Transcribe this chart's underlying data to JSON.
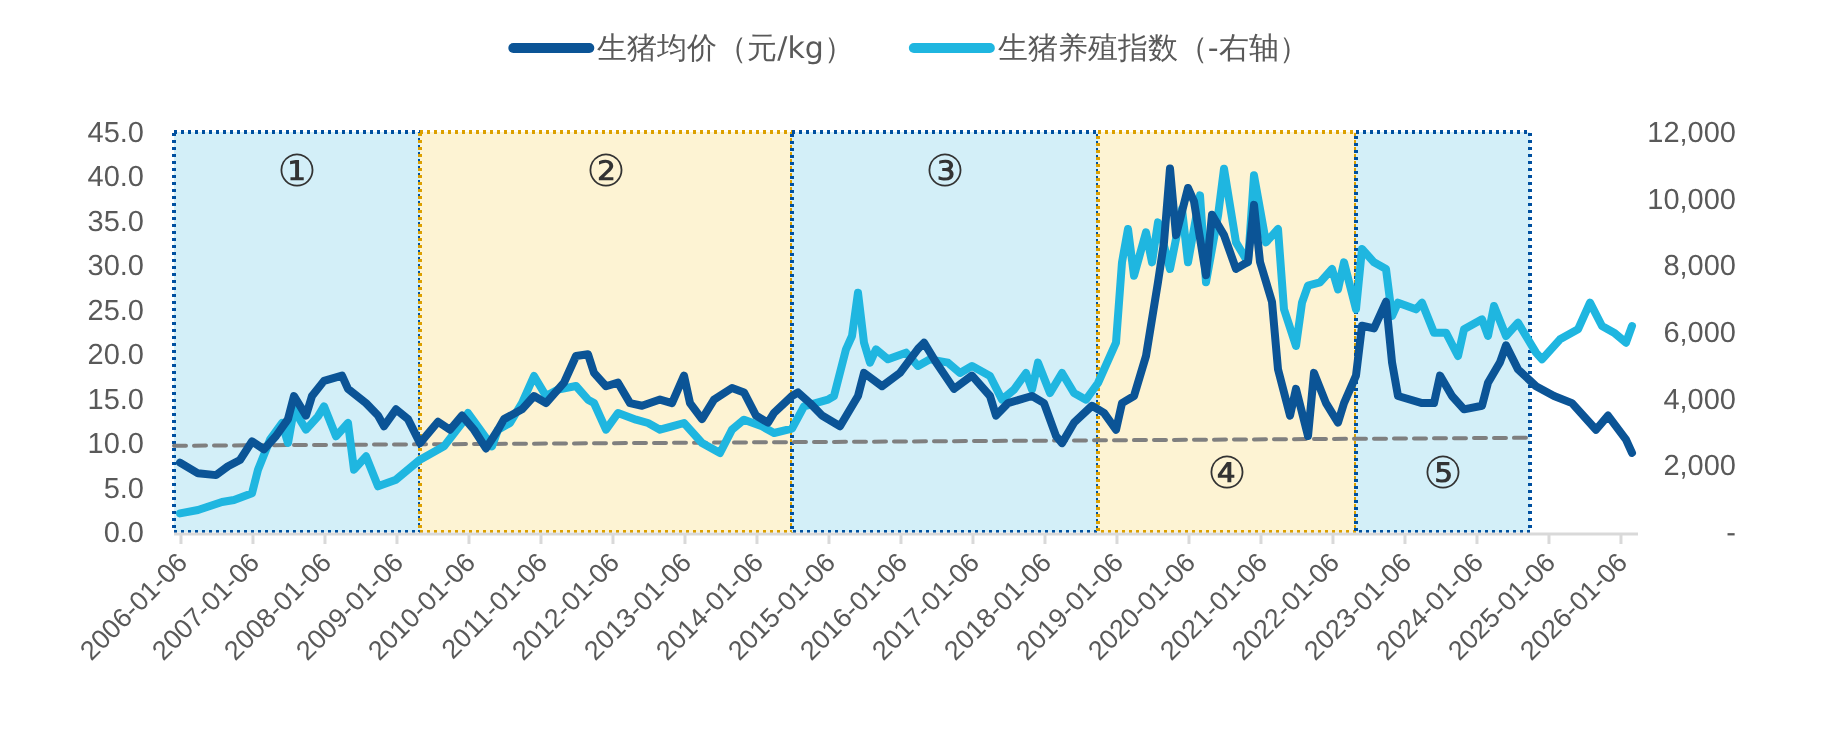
{
  "chart_data": {
    "type": "line",
    "legend": "top",
    "xlim": [
      "2005-12",
      "2026-04"
    ],
    "xticks": [
      "2006-01-06",
      "2007-01-06",
      "2008-01-06",
      "2009-01-06",
      "2010-01-06",
      "2011-01-06",
      "2012-01-06",
      "2013-01-06",
      "2014-01-06",
      "2015-01-06",
      "2016-01-06",
      "2017-01-06",
      "2018-01-06",
      "2019-01-06",
      "2020-01-06",
      "2021-01-06",
      "2022-01-06",
      "2023-01-06",
      "2024-01-06",
      "2025-01-06",
      "2026-01-06"
    ],
    "ylim": [
      0,
      45
    ],
    "yticks": [
      {
        "value": 0,
        "label": "0.0"
      },
      {
        "value": 5,
        "label": "5.0"
      },
      {
        "value": 10,
        "label": "10.0"
      },
      {
        "value": 15,
        "label": "15.0"
      },
      {
        "value": 20,
        "label": "20.0"
      },
      {
        "value": 25,
        "label": "25.0"
      },
      {
        "value": 30,
        "label": "30.0"
      },
      {
        "value": 35,
        "label": "35.0"
      },
      {
        "value": 40,
        "label": "40.0"
      },
      {
        "value": 45,
        "label": "45.0"
      }
    ],
    "y2lim": [
      0,
      12000
    ],
    "y2ticks": [
      {
        "value": 0,
        "label": "-"
      },
      {
        "value": 2000,
        "label": "2,000"
      },
      {
        "value": 4000,
        "label": "4,000"
      },
      {
        "value": 6000,
        "label": "6,000"
      },
      {
        "value": 8000,
        "label": "8,000"
      },
      {
        "value": 10000,
        "label": "10,000"
      },
      {
        "value": 12000,
        "label": "12,000"
      }
    ],
    "bands": [
      {
        "axis": "x",
        "from": "2005-12",
        "to": "2009-05",
        "label": "①",
        "color": "#d3eff8"
      },
      {
        "axis": "x",
        "from": "2009-05",
        "to": "2014-07",
        "label": "②",
        "color": "#fdf3d3"
      },
      {
        "axis": "x",
        "from": "2014-07",
        "to": "2018-10",
        "label": "③",
        "color": "#d3eff8"
      },
      {
        "axis": "x",
        "from": "2018-10",
        "to": "2022-05",
        "label": "④",
        "color": "#fdf3d3"
      },
      {
        "axis": "x",
        "from": "2022-05",
        "to": "2024-10",
        "label": "⑤",
        "color": "#d3eff8"
      }
    ],
    "series": [
      {
        "name": "生猪均价（元/kg）",
        "color": "#0b5496",
        "x": [
          "2006-01",
          "2006-04",
          "2006-07",
          "2006-09",
          "2006-11",
          "2007-01",
          "2007-03",
          "2007-05",
          "2007-07",
          "2007-08",
          "2007-10",
          "2007-11",
          "2008-01",
          "2008-04",
          "2008-05",
          "2008-08",
          "2008-10",
          "2008-11",
          "2009-01",
          "2009-03",
          "2009-05",
          "2009-06",
          "2009-08",
          "2009-10",
          "2009-12",
          "2010-02",
          "2010-04",
          "2010-06",
          "2010-07",
          "2010-10",
          "2010-12",
          "2011-02",
          "2011-05",
          "2011-07",
          "2011-09",
          "2011-10",
          "2011-12",
          "2012-02",
          "2012-04",
          "2012-06",
          "2012-09",
          "2012-11",
          "2013-01",
          "2013-02",
          "2013-04",
          "2013-06",
          "2013-09",
          "2013-11",
          "2014-01",
          "2014-03",
          "2014-04",
          "2014-07",
          "2014-08",
          "2014-10",
          "2014-12",
          "2015-03",
          "2015-06",
          "2015-07",
          "2015-10",
          "2016-01",
          "2016-04",
          "2016-05",
          "2016-07",
          "2016-10",
          "2017-01",
          "2017-04",
          "2017-05",
          "2017-07",
          "2017-11",
          "2018-01",
          "2018-03",
          "2018-04",
          "2018-06",
          "2018-09",
          "2018-11",
          "2019-01",
          "2019-02",
          "2019-04",
          "2019-06",
          "2019-08",
          "2019-09",
          "2019-10",
          "2019-11",
          "2020-01",
          "2020-02",
          "2020-04",
          "2020-05",
          "2020-07",
          "2020-09",
          "2020-11",
          "2020-12",
          "2021-01",
          "2021-03",
          "2021-04",
          "2021-06",
          "2021-07",
          "2021-09",
          "2021-10",
          "2021-12",
          "2022-02",
          "2022-03",
          "2022-05",
          "2022-06",
          "2022-08",
          "2022-10",
          "2022-11",
          "2022-12",
          "2023-04",
          "2023-06",
          "2023-07",
          "2023-09",
          "2023-11",
          "2024-02",
          "2024-03",
          "2024-05",
          "2024-06",
          "2024-08",
          "2024-11",
          "2025-02",
          "2025-05",
          "2025-09",
          "2025-11",
          "2026-02",
          "2026-03"
        ],
        "values": [
          7.8,
          6.6,
          6.4,
          7.4,
          8.1,
          10.2,
          9.3,
          10.8,
          12.7,
          15.3,
          13.1,
          15.3,
          17.0,
          17.6,
          16.1,
          14.5,
          13.1,
          11.9,
          13.8,
          12.7,
          10.0,
          10.8,
          12.4,
          11.5,
          13.1,
          11.5,
          9.4,
          11.5,
          12.7,
          13.8,
          15.3,
          14.5,
          16.8,
          19.8,
          20.0,
          17.9,
          16.4,
          16.8,
          14.5,
          14.2,
          14.9,
          14.5,
          17.6,
          14.5,
          12.7,
          14.9,
          16.2,
          15.7,
          13.1,
          12.3,
          13.4,
          15.3,
          15.7,
          14.5,
          13.1,
          11.9,
          15.3,
          17.9,
          16.4,
          17.9,
          20.6,
          21.3,
          19.1,
          16.1,
          17.6,
          15.3,
          13.1,
          14.5,
          15.3,
          14.5,
          10.8,
          10.0,
          12.3,
          14.2,
          13.4,
          11.5,
          14.5,
          15.3,
          19.8,
          28.1,
          32.6,
          40.9,
          33.4,
          38.7,
          37.2,
          28.9,
          35.7,
          33.4,
          29.6,
          30.4,
          36.8,
          30.4,
          25.9,
          18.3,
          13.1,
          16.1,
          10.8,
          17.9,
          14.5,
          12.3,
          14.5,
          17.6,
          23.2,
          22.9,
          25.9,
          19.1,
          15.3,
          14.5,
          14.5,
          17.6,
          15.3,
          13.8,
          14.2,
          16.8,
          19.1,
          21.0,
          18.3,
          16.4,
          15.3,
          14.5,
          11.5,
          13.1,
          10.4,
          8.9
        ]
      },
      {
        "name": "生猪养殖指数（-右轴）",
        "color": "#1fb6e0",
        "axis": "y2",
        "x": [
          "2006-01",
          "2006-04",
          "2006-08",
          "2006-10",
          "2007-01",
          "2007-02",
          "2007-04",
          "2007-06",
          "2007-07",
          "2007-08",
          "2007-10",
          "2007-12",
          "2008-01",
          "2008-03",
          "2008-05",
          "2008-06",
          "2008-08",
          "2008-10",
          "2009-01",
          "2009-03",
          "2009-05",
          "2009-07",
          "2009-09",
          "2009-12",
          "2010-01",
          "2010-03",
          "2010-05",
          "2010-06",
          "2010-08",
          "2010-10",
          "2010-12",
          "2011-02",
          "2011-04",
          "2011-07",
          "2011-09",
          "2011-10",
          "2011-12",
          "2012-02",
          "2012-05",
          "2012-07",
          "2012-09",
          "2012-11",
          "2013-01",
          "2013-04",
          "2013-07",
          "2013-09",
          "2013-11",
          "2014-02",
          "2014-04",
          "2014-07",
          "2014-09",
          "2015-01",
          "2015-02",
          "2015-04",
          "2015-05",
          "2015-06",
          "2015-07",
          "2015-08",
          "2015-09",
          "2015-11",
          "2016-02",
          "2016-04",
          "2016-06",
          "2016-09",
          "2016-11",
          "2017-01",
          "2017-04",
          "2017-06",
          "2017-08",
          "2017-10",
          "2017-11",
          "2017-12",
          "2018-02",
          "2018-04",
          "2018-06",
          "2018-08",
          "2018-10",
          "2019-01",
          "2019-02",
          "2019-03",
          "2019-04",
          "2019-06",
          "2019-07",
          "2019-08",
          "2019-10",
          "2019-12",
          "2020-01",
          "2020-03",
          "2020-04",
          "2020-06",
          "2020-07",
          "2020-09",
          "2020-11",
          "2020-12",
          "2021-02",
          "2021-04",
          "2021-05",
          "2021-07",
          "2021-08",
          "2021-09",
          "2021-11",
          "2022-01",
          "2022-02",
          "2022-03",
          "2022-05",
          "2022-06",
          "2022-08",
          "2022-10",
          "2022-11",
          "2022-12",
          "2023-03",
          "2023-04",
          "2023-06",
          "2023-08",
          "2023-10",
          "2023-11",
          "2024-02",
          "2024-03",
          "2024-04",
          "2024-06",
          "2024-08",
          "2024-11",
          "2024-12",
          "2025-03",
          "2025-06",
          "2025-08",
          "2025-10",
          "2025-12",
          "2026-02",
          "2026-03"
        ],
        "values": [
          560,
          660,
          900,
          960,
          1160,
          1870,
          2770,
          3270,
          2670,
          3670,
          3070,
          3470,
          3770,
          2870,
          3270,
          1870,
          2270,
          1370,
          1570,
          1870,
          2170,
          2370,
          2570,
          3270,
          3570,
          3070,
          2570,
          3070,
          3270,
          3870,
          4680,
          4080,
          4270,
          4380,
          3970,
          3870,
          3070,
          3570,
          3370,
          3270,
          3070,
          3170,
          3270,
          2670,
          2370,
          3070,
          3370,
          3170,
          2970,
          3100,
          3770,
          3970,
          4080,
          5480,
          5880,
          7180,
          5680,
          5080,
          5480,
          5180,
          5380,
          4980,
          5180,
          5080,
          4770,
          4980,
          4680,
          3970,
          4270,
          4770,
          4270,
          5080,
          4170,
          4770,
          4170,
          3970,
          4470,
          5680,
          8090,
          9090,
          7690,
          8990,
          8090,
          9290,
          7890,
          9690,
          8090,
          10100,
          7490,
          9490,
          10900,
          8690,
          8090,
          10700,
          8690,
          9090,
          6680,
          5580,
          6880,
          7390,
          7490,
          7890,
          7280,
          8090,
          6680,
          8490,
          8090,
          7890,
          6480,
          6880,
          6680,
          6880,
          5980,
          5980,
          5280,
          6080,
          6380,
          5880,
          6780,
          5880,
          6280,
          5380,
          5180,
          5780,
          6080,
          6880,
          6180,
          5980,
          5680,
          6180
        ]
      },
      {
        "color": "#7f7f7f",
        "line_style": "dashed",
        "x": [
          "2005-12",
          "2024-10"
        ],
        "values": [
          9.7,
          10.6
        ]
      }
    ]
  }
}
